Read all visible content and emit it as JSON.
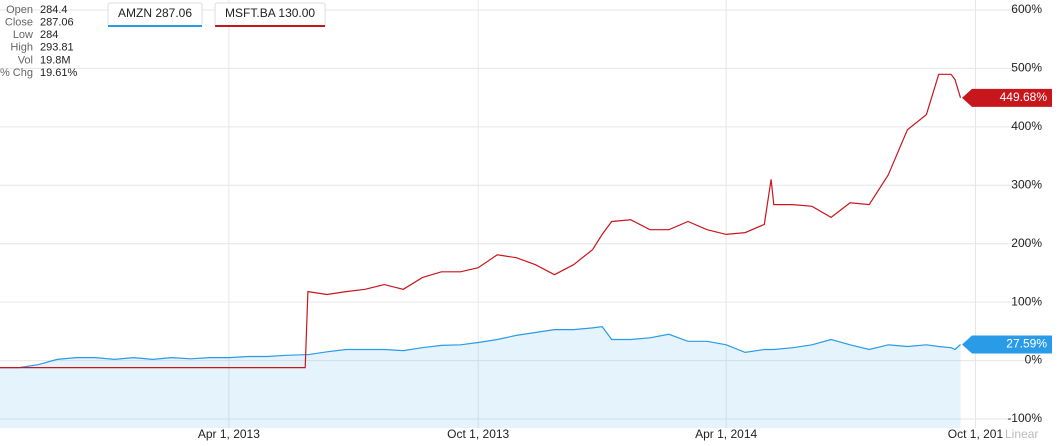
{
  "chart_data": {
    "type": "line",
    "info": [
      {
        "label": "Open",
        "value": "284.4"
      },
      {
        "label": "Close",
        "value": "287.06"
      },
      {
        "label": "Low",
        "value": "284"
      },
      {
        "label": "High",
        "value": "293.81"
      },
      {
        "label": "Vol",
        "value": "19.8M"
      },
      {
        "label": "% Chg",
        "value": "19.61%"
      }
    ],
    "scale_label": "Linear",
    "x": [
      "2012-10-15",
      "2012-10-29",
      "2012-11-12",
      "2012-11-26",
      "2012-12-10",
      "2012-12-24",
      "2013-01-07",
      "2013-01-21",
      "2013-02-04",
      "2013-02-18",
      "2013-03-04",
      "2013-03-18",
      "2013-04-01",
      "2013-04-15",
      "2013-04-29",
      "2013-05-13",
      "2013-05-27",
      "2013-05-29",
      "2013-06-12",
      "2013-06-26",
      "2013-07-10",
      "2013-07-24",
      "2013-08-07",
      "2013-08-21",
      "2013-09-04",
      "2013-09-18",
      "2013-10-01",
      "2013-10-15",
      "2013-10-29",
      "2013-11-12",
      "2013-11-26",
      "2013-12-10",
      "2013-12-24",
      "2013-12-31",
      "2014-01-07",
      "2014-01-21",
      "2014-02-04",
      "2014-02-18",
      "2014-03-04",
      "2014-03-18",
      "2014-04-01",
      "2014-04-15",
      "2014-04-29",
      "2014-05-04",
      "2014-05-06",
      "2014-05-20",
      "2014-06-03",
      "2014-06-17",
      "2014-07-01",
      "2014-07-15",
      "2014-07-29",
      "2014-08-12",
      "2014-08-26",
      "2014-09-04",
      "2014-09-13",
      "2014-09-16",
      "2014-09-20"
    ],
    "xlim": [
      "2012-10-15",
      "2014-10-19"
    ],
    "xticks": [
      {
        "value": "2013-04-01",
        "label": "Apr 1, 2013"
      },
      {
        "value": "2013-10-01",
        "label": "Oct 1, 2013"
      },
      {
        "value": "2014-04-01",
        "label": "Apr 1, 2014"
      },
      {
        "value": "2014-10-01",
        "label": "Oct 1, 201"
      }
    ],
    "ylim": [
      -100,
      600
    ],
    "yticks": [
      {
        "value": -100,
        "label": "-100%"
      },
      {
        "value": 0,
        "label": "0%"
      },
      {
        "value": 100,
        "label": "100%"
      },
      {
        "value": 200,
        "label": "200%"
      },
      {
        "value": 300,
        "label": "300%"
      },
      {
        "value": 400,
        "label": "400%"
      },
      {
        "value": 500,
        "label": "500%"
      },
      {
        "value": 600,
        "label": "600%"
      }
    ],
    "grid": true,
    "series": [
      {
        "name": "AMZN 287.06",
        "color": "#2a9be6",
        "area": true,
        "last_label": "27.59%",
        "values": [
          -12,
          -12,
          -7,
          2,
          5,
          5,
          2,
          5,
          2,
          5,
          3,
          5,
          5,
          7,
          7,
          9,
          10,
          10,
          15,
          19,
          19,
          19,
          17,
          22,
          26,
          27,
          31,
          36,
          43,
          48,
          53,
          53,
          56,
          58,
          36,
          36,
          39,
          45,
          33,
          33,
          27,
          14,
          19,
          19,
          19,
          22,
          27,
          36,
          27,
          19,
          27,
          24,
          27,
          24,
          22,
          19,
          27.59
        ]
      },
      {
        "name": "MSFT.BA 130.00",
        "color": "#c8161d",
        "area": false,
        "last_label": "449.68%",
        "values": [
          -12,
          -12,
          -12,
          -12,
          -12,
          -12,
          -12,
          -12,
          -12,
          -12,
          -12,
          -12,
          -12,
          -12,
          -12,
          -12,
          -12,
          118,
          113,
          118,
          122,
          130,
          122,
          142,
          152,
          152,
          159,
          181,
          176,
          164,
          147,
          164,
          190,
          216,
          238,
          241,
          224,
          224,
          238,
          224,
          216,
          219,
          233,
          310,
          267,
          267,
          264,
          245,
          270,
          267,
          318,
          395,
          421,
          490,
          490,
          481,
          449.68
        ]
      }
    ]
  }
}
